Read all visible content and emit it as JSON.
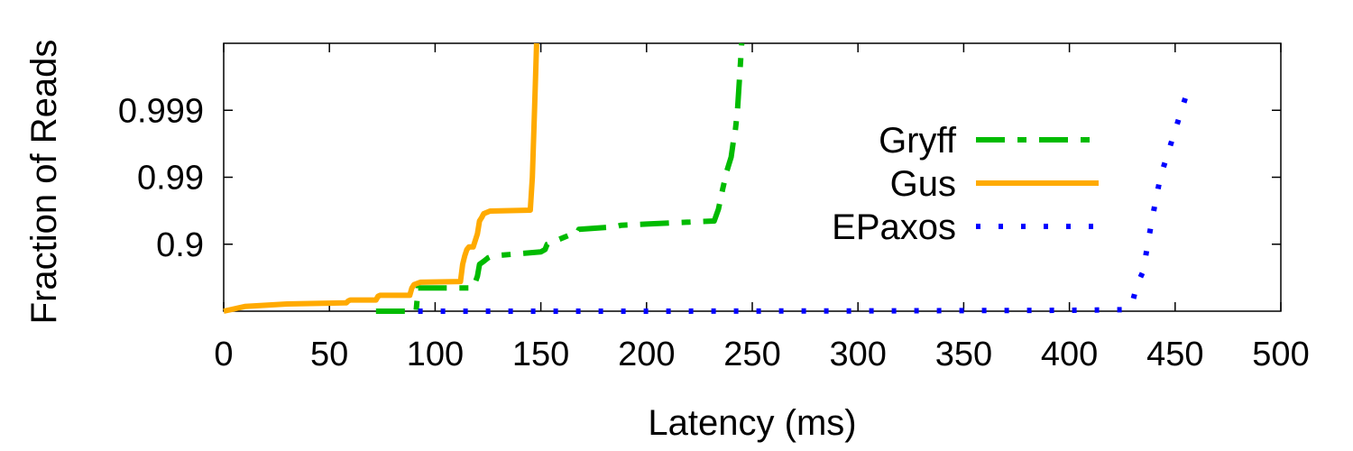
{
  "chart_data": {
    "type": "line",
    "title": "",
    "xlabel": "Latency (ms)",
    "ylabel": "Fraction of Reads",
    "xlim": [
      0,
      500
    ],
    "y_scale": "log-complement",
    "ylim": [
      0,
      0.9999
    ],
    "x_ticks": [
      0,
      50,
      100,
      150,
      200,
      250,
      300,
      350,
      400,
      450,
      500
    ],
    "x_tick_labels": [
      "0",
      "50",
      "100",
      "150",
      "200",
      "250",
      "300",
      "350",
      "400",
      "450",
      "500"
    ],
    "y_ticks": [
      0.9,
      0.99,
      0.999
    ],
    "y_tick_labels": [
      "0.9",
      "0.99",
      "0.999"
    ],
    "grid": false,
    "legend_position": "right",
    "series": [
      {
        "name": "Gryff",
        "color": "#00bb00",
        "style": "dash-dot",
        "x": [
          72,
          91,
          92,
          118,
          120,
          121,
          123,
          125,
          127,
          150,
          152,
          153,
          165,
          167,
          168,
          185,
          188,
          200,
          232,
          234,
          236,
          238,
          240,
          241,
          242,
          243,
          245
        ],
        "y": [
          0.0,
          0.0,
          0.55,
          0.55,
          0.7,
          0.8,
          0.82,
          0.84,
          0.85,
          0.87,
          0.88,
          0.9,
          0.93,
          0.93,
          0.94,
          0.945,
          0.948,
          0.95,
          0.955,
          0.97,
          0.985,
          0.992,
          0.995,
          0.997,
          0.998,
          0.999,
          0.9999
        ]
      },
      {
        "name": "Gus",
        "color": "#ffaa00",
        "style": "solid",
        "x": [
          0,
          10,
          30,
          58,
          59,
          60,
          72,
          73,
          74,
          88,
          89,
          90,
          93,
          112,
          113,
          114,
          115,
          116,
          118,
          120,
          121,
          122,
          123,
          126,
          145,
          146,
          147,
          148
        ],
        "y": [
          0.0,
          0.15,
          0.22,
          0.25,
          0.3,
          0.32,
          0.32,
          0.4,
          0.42,
          0.42,
          0.55,
          0.6,
          0.63,
          0.64,
          0.8,
          0.85,
          0.88,
          0.89,
          0.89,
          0.93,
          0.955,
          0.96,
          0.965,
          0.968,
          0.969,
          0.99,
          0.999,
          0.9999
        ]
      },
      {
        "name": "EPaxos",
        "color": "#0000ff",
        "style": "dotted",
        "x": [
          92,
          200,
          300,
          400,
          427,
          430,
          432,
          435,
          437,
          440,
          443,
          446,
          450,
          453,
          456
        ],
        "y": [
          0.0,
          0.0,
          0.01,
          0.03,
          0.05,
          0.3,
          0.6,
          0.75,
          0.9,
          0.97,
          0.99,
          0.995,
          0.998,
          0.999,
          0.9995
        ]
      }
    ]
  }
}
